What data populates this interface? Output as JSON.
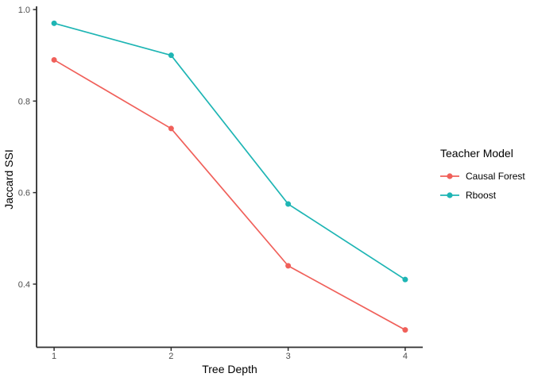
{
  "figure": {
    "background": "#ffffff"
  },
  "chart_data": {
    "type": "line",
    "title": "",
    "xlabel": "Tree Depth",
    "ylabel": "Jaccard SSI",
    "x": [
      1,
      2,
      3,
      4
    ],
    "series": [
      {
        "name": "Causal Forest",
        "color": "#F0605A",
        "marker": "circle",
        "values": [
          0.89,
          0.74,
          0.44,
          0.3
        ]
      },
      {
        "name": "Rboost",
        "color": "#1EB5B4",
        "marker": "circle",
        "values": [
          0.97,
          0.9,
          0.575,
          0.41
        ]
      }
    ],
    "xticks": [
      1,
      2,
      3,
      4
    ],
    "xtick_labels": [
      "1",
      "2",
      "3",
      "4"
    ],
    "yticks": [
      0.4,
      0.6,
      0.8,
      1.0
    ],
    "ytick_labels": [
      "0.4",
      "0.6",
      "0.8",
      "1.0"
    ],
    "xlim": [
      0.85,
      4.15
    ],
    "ylim": [
      0.262,
      1.007
    ],
    "grid": false,
    "legend": {
      "title": "Teacher Model",
      "position": "right",
      "items": [
        "Causal Forest",
        "Rboost"
      ]
    },
    "axis_color": "#2e2e2e",
    "tick_label_color": "#4d4d4d"
  }
}
